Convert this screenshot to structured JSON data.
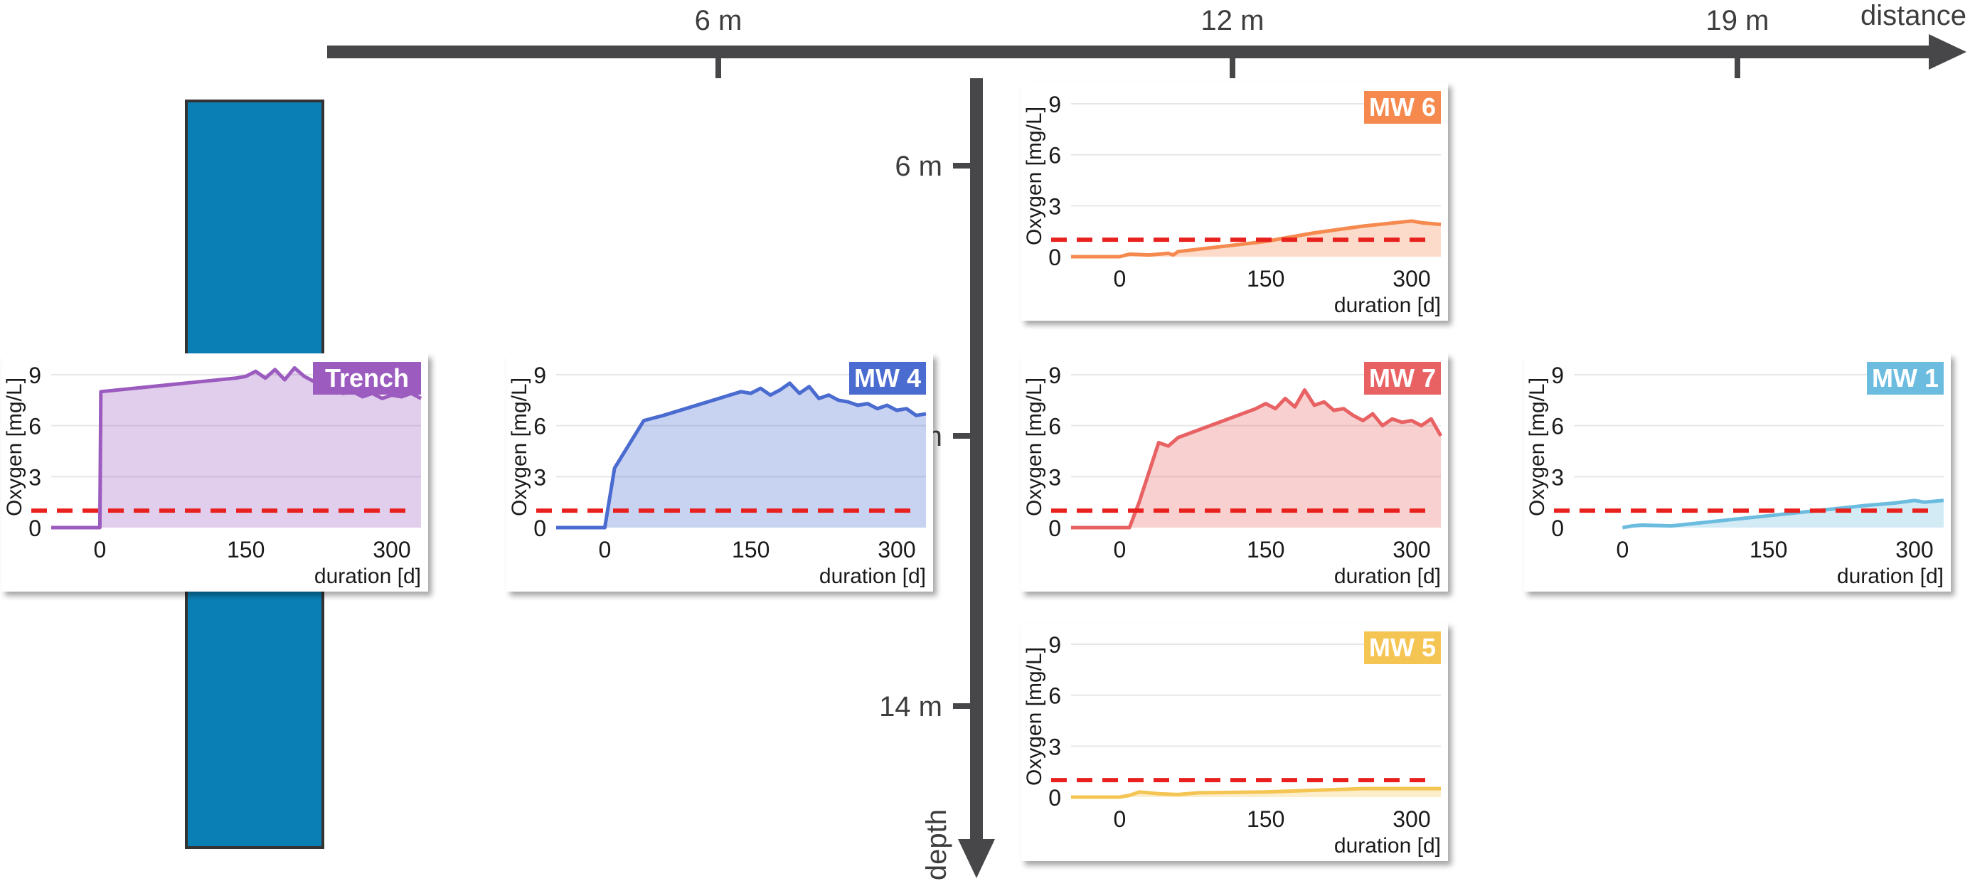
{
  "distance_axis": {
    "label": "distance",
    "ticks": [
      {
        "label": "6 m",
        "value": 6
      },
      {
        "label": "12 m",
        "value": 12
      },
      {
        "label": "19 m",
        "value": 19
      }
    ]
  },
  "depth_axis": {
    "label": "depth",
    "ticks": [
      {
        "label": "6 m",
        "value": 6
      },
      {
        "label": "10 m",
        "value": 10
      },
      {
        "label": "14 m",
        "value": 14
      }
    ]
  },
  "colors": {
    "trench_column": "#0a7fb5",
    "axis": "#474749",
    "threshold": "#e8201e",
    "Trench": "#9b5bbf",
    "MW 4": "#4a6bd0",
    "MW 6": "#f5894e",
    "MW 7": "#e86264",
    "MW 1": "#6cbcdf",
    "MW 5": "#f5c553"
  },
  "chart_data": [
    {
      "type": "area",
      "name": "Trench",
      "xlabel": "duration [d]",
      "ylabel": "Oxygen [mg/L]",
      "xlim": [
        -50,
        330
      ],
      "ylim": [
        0,
        9.5
      ],
      "xticks": [
        0,
        150,
        300
      ],
      "yticks": [
        0,
        3,
        6,
        9
      ],
      "threshold": 1,
      "x": [
        -50,
        -1,
        0,
        1,
        140,
        150,
        160,
        170,
        180,
        190,
        200,
        210,
        220,
        230,
        240,
        250,
        260,
        270,
        280,
        290,
        300,
        310,
        320,
        330
      ],
      "y": [
        0,
        0,
        0,
        8,
        8.8,
        8.9,
        9.2,
        8.8,
        9.3,
        8.7,
        9.4,
        8.9,
        8.6,
        8.2,
        8.4,
        7.9,
        8.0,
        7.7,
        7.9,
        7.6,
        7.8,
        7.7,
        7.9,
        7.6
      ]
    },
    {
      "type": "area",
      "name": "MW 4",
      "xlabel": "duration [d]",
      "ylabel": "Oxygen [mg/L]",
      "xlim": [
        -50,
        330
      ],
      "ylim": [
        0,
        9.5
      ],
      "xticks": [
        0,
        150,
        300
      ],
      "yticks": [
        0,
        3,
        6,
        9
      ],
      "threshold": 1,
      "x": [
        -50,
        0,
        10,
        40,
        60,
        140,
        150,
        160,
        170,
        180,
        190,
        200,
        210,
        220,
        230,
        240,
        250,
        260,
        270,
        280,
        290,
        300,
        310,
        320,
        330
      ],
      "y": [
        0,
        0,
        3.5,
        6.3,
        6.6,
        8.0,
        7.9,
        8.2,
        7.8,
        8.1,
        8.5,
        7.9,
        8.3,
        7.6,
        7.8,
        7.5,
        7.4,
        7.2,
        7.3,
        7.0,
        7.2,
        6.9,
        7.0,
        6.6,
        6.7
      ]
    },
    {
      "type": "area",
      "name": "MW 6",
      "xlabel": "duration [d]",
      "ylabel": "Oxygen [mg/L]",
      "xlim": [
        -50,
        330
      ],
      "ylim": [
        0,
        9.5
      ],
      "xticks": [
        0,
        150,
        300
      ],
      "yticks": [
        0,
        3,
        6,
        9
      ],
      "threshold": 1,
      "x": [
        -50,
        0,
        10,
        30,
        50,
        55,
        60,
        150,
        200,
        250,
        300,
        310,
        330
      ],
      "y": [
        0,
        0,
        0.15,
        0.1,
        0.2,
        0.1,
        0.3,
        0.9,
        1.4,
        1.8,
        2.1,
        2.0,
        1.9
      ]
    },
    {
      "type": "area",
      "name": "MW 7",
      "xlabel": "duration [d]",
      "ylabel": "Oxygen [mg/L]",
      "xlim": [
        -50,
        330
      ],
      "ylim": [
        0,
        9.5
      ],
      "xticks": [
        0,
        150,
        300
      ],
      "yticks": [
        0,
        3,
        6,
        9
      ],
      "threshold": 1,
      "x": [
        -50,
        10,
        20,
        40,
        50,
        60,
        140,
        150,
        160,
        170,
        180,
        190,
        200,
        210,
        220,
        230,
        240,
        250,
        260,
        270,
        280,
        290,
        300,
        310,
        320,
        330
      ],
      "y": [
        0,
        0,
        1.5,
        5.0,
        4.8,
        5.3,
        7.0,
        7.3,
        7.0,
        7.6,
        7.1,
        8.1,
        7.2,
        7.4,
        6.9,
        7.0,
        6.6,
        6.3,
        6.7,
        6.0,
        6.4,
        6.2,
        6.3,
        6.0,
        6.4,
        5.4
      ]
    },
    {
      "type": "area",
      "name": "MW 1",
      "xlabel": "duration [d]",
      "ylabel": "Oxygen [mg/L]",
      "xlim": [
        -50,
        330
      ],
      "ylim": [
        0,
        9.5
      ],
      "xticks": [
        0,
        150,
        300
      ],
      "yticks": [
        0,
        3,
        6,
        9
      ],
      "threshold": 1,
      "x": [
        0,
        10,
        20,
        50,
        100,
        150,
        200,
        250,
        280,
        300,
        310,
        330
      ],
      "y": [
        0,
        0.1,
        0.15,
        0.1,
        0.4,
        0.7,
        1.0,
        1.3,
        1.45,
        1.6,
        1.5,
        1.6
      ]
    },
    {
      "type": "area",
      "name": "MW 5",
      "xlabel": "duration [d]",
      "ylabel": "Oxygen [mg/L]",
      "xlim": [
        -50,
        330
      ],
      "ylim": [
        0,
        9.5
      ],
      "xticks": [
        0,
        150,
        300
      ],
      "yticks": [
        0,
        3,
        6,
        9
      ],
      "threshold": 1,
      "x": [
        -50,
        0,
        10,
        20,
        40,
        60,
        80,
        150,
        200,
        250,
        300,
        330
      ],
      "y": [
        0,
        0,
        0.1,
        0.3,
        0.2,
        0.15,
        0.25,
        0.3,
        0.4,
        0.5,
        0.5,
        0.5
      ]
    }
  ]
}
